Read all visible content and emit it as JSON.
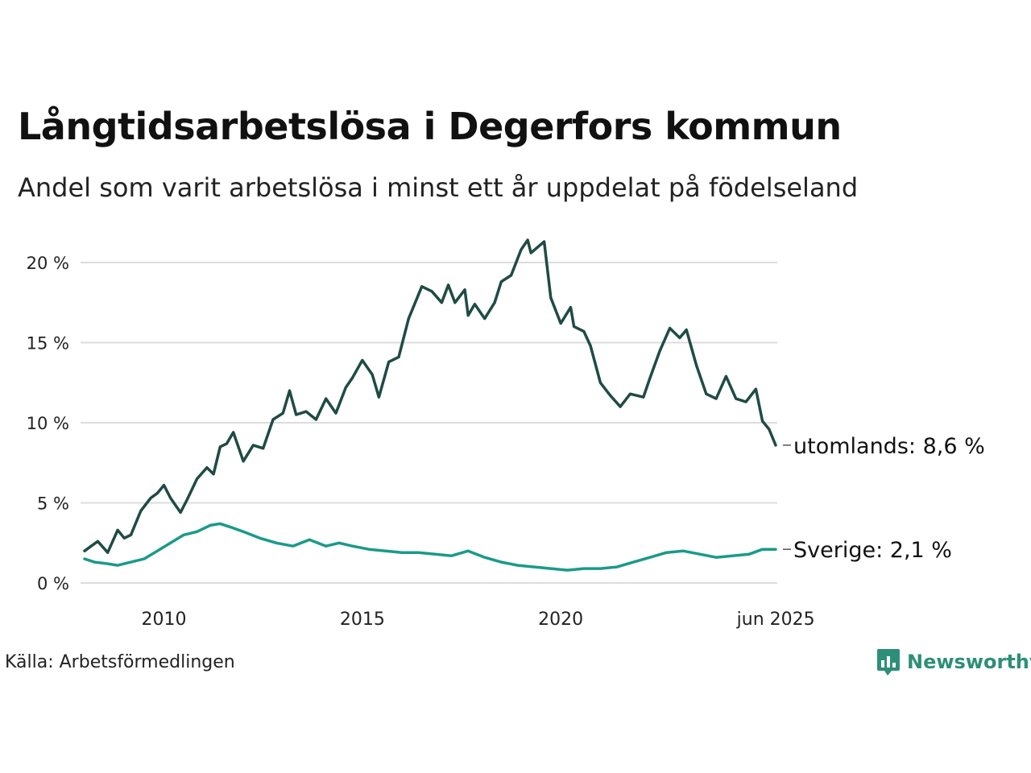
{
  "title": "Långtidsarbetslösa i Degerfors kommun",
  "subtitle": "Andel som varit arbetslösa i minst ett år uppdelat på födelseland",
  "source": "Källa: Arbetsförmedlingen",
  "brand": "Newsworthy",
  "colors": {
    "utomlands": "#1f4b45",
    "sverige": "#1a9a8a",
    "grid": "#dddddd",
    "brand": "#2d8f78"
  },
  "chart_data": {
    "type": "line",
    "x_range": [
      "2008-01",
      "2025-06"
    ],
    "ylim": [
      0,
      21
    ],
    "yticks": [
      0,
      5,
      10,
      15,
      20
    ],
    "ytick_labels": [
      "0 %",
      "5 %",
      "10 %",
      "15 %",
      "20 %"
    ],
    "xticks": [
      2010,
      2015,
      2020,
      2025.42
    ],
    "xtick_labels": [
      "2010",
      "2015",
      "2020",
      "jun 2025"
    ],
    "grid": true,
    "series": [
      {
        "key": "utomlands",
        "end_label": "utomlands: 8,6 %",
        "points": [
          [
            "2008-01",
            2.0
          ],
          [
            "2008-03",
            2.3
          ],
          [
            "2008-05",
            2.6
          ],
          [
            "2008-08",
            1.9
          ],
          [
            "2008-11",
            3.3
          ],
          [
            "2009-01",
            2.8
          ],
          [
            "2009-03",
            3.0
          ],
          [
            "2009-06",
            4.5
          ],
          [
            "2009-09",
            5.3
          ],
          [
            "2009-11",
            5.6
          ],
          [
            "2010-01",
            6.1
          ],
          [
            "2010-03",
            5.3
          ],
          [
            "2010-06",
            4.4
          ],
          [
            "2010-08",
            5.2
          ],
          [
            "2010-11",
            6.5
          ],
          [
            "2011-02",
            7.2
          ],
          [
            "2011-04",
            6.8
          ],
          [
            "2011-06",
            8.5
          ],
          [
            "2011-08",
            8.7
          ],
          [
            "2011-10",
            9.4
          ],
          [
            "2012-01",
            7.6
          ],
          [
            "2012-04",
            8.6
          ],
          [
            "2012-07",
            8.4
          ],
          [
            "2012-10",
            10.2
          ],
          [
            "2013-01",
            10.6
          ],
          [
            "2013-03",
            12.0
          ],
          [
            "2013-05",
            10.5
          ],
          [
            "2013-08",
            10.7
          ],
          [
            "2013-11",
            10.2
          ],
          [
            "2014-02",
            11.5
          ],
          [
            "2014-05",
            10.6
          ],
          [
            "2014-08",
            12.2
          ],
          [
            "2014-10",
            12.8
          ],
          [
            "2015-01",
            13.9
          ],
          [
            "2015-04",
            13.0
          ],
          [
            "2015-06",
            11.6
          ],
          [
            "2015-09",
            13.8
          ],
          [
            "2015-12",
            14.1
          ],
          [
            "2016-03",
            16.5
          ],
          [
            "2016-07",
            18.5
          ],
          [
            "2016-10",
            18.2
          ],
          [
            "2017-01",
            17.5
          ],
          [
            "2017-03",
            18.6
          ],
          [
            "2017-05",
            17.5
          ],
          [
            "2017-08",
            18.3
          ],
          [
            "2017-09",
            16.7
          ],
          [
            "2017-11",
            17.4
          ],
          [
            "2018-02",
            16.5
          ],
          [
            "2018-05",
            17.5
          ],
          [
            "2018-07",
            18.8
          ],
          [
            "2018-10",
            19.2
          ],
          [
            "2019-01",
            20.8
          ],
          [
            "2019-03",
            21.4
          ],
          [
            "2019-04",
            20.6
          ],
          [
            "2019-08",
            21.3
          ],
          [
            "2019-10",
            17.8
          ],
          [
            "2020-01",
            16.2
          ],
          [
            "2020-04",
            17.2
          ],
          [
            "2020-05",
            16.0
          ],
          [
            "2020-08",
            15.7
          ],
          [
            "2020-10",
            14.8
          ],
          [
            "2021-01",
            12.5
          ],
          [
            "2021-04",
            11.7
          ],
          [
            "2021-07",
            11.0
          ],
          [
            "2021-10",
            11.8
          ],
          [
            "2022-02",
            11.6
          ],
          [
            "2022-04",
            12.8
          ],
          [
            "2022-07",
            14.5
          ],
          [
            "2022-10",
            15.9
          ],
          [
            "2023-01",
            15.3
          ],
          [
            "2023-03",
            15.8
          ],
          [
            "2023-06",
            13.6
          ],
          [
            "2023-09",
            11.8
          ],
          [
            "2023-12",
            11.5
          ],
          [
            "2024-03",
            12.9
          ],
          [
            "2024-06",
            11.5
          ],
          [
            "2024-09",
            11.3
          ],
          [
            "2024-12",
            12.1
          ],
          [
            "2025-02",
            10.1
          ],
          [
            "2025-04",
            9.6
          ],
          [
            "2025-06",
            8.6
          ]
        ]
      },
      {
        "key": "sverige",
        "end_label": "Sverige: 2,1 %",
        "points": [
          [
            "2008-01",
            1.5
          ],
          [
            "2008-04",
            1.3
          ],
          [
            "2008-08",
            1.2
          ],
          [
            "2008-11",
            1.1
          ],
          [
            "2009-03",
            1.3
          ],
          [
            "2009-07",
            1.5
          ],
          [
            "2009-11",
            2.0
          ],
          [
            "2010-03",
            2.5
          ],
          [
            "2010-07",
            3.0
          ],
          [
            "2010-11",
            3.2
          ],
          [
            "2011-03",
            3.6
          ],
          [
            "2011-06",
            3.7
          ],
          [
            "2011-09",
            3.5
          ],
          [
            "2012-01",
            3.2
          ],
          [
            "2012-06",
            2.8
          ],
          [
            "2012-11",
            2.5
          ],
          [
            "2013-04",
            2.3
          ],
          [
            "2013-09",
            2.7
          ],
          [
            "2014-02",
            2.3
          ],
          [
            "2014-06",
            2.5
          ],
          [
            "2014-10",
            2.3
          ],
          [
            "2015-03",
            2.1
          ],
          [
            "2015-08",
            2.0
          ],
          [
            "2016-01",
            1.9
          ],
          [
            "2016-06",
            1.9
          ],
          [
            "2016-11",
            1.8
          ],
          [
            "2017-04",
            1.7
          ],
          [
            "2017-09",
            2.0
          ],
          [
            "2018-02",
            1.6
          ],
          [
            "2018-07",
            1.3
          ],
          [
            "2018-12",
            1.1
          ],
          [
            "2019-05",
            1.0
          ],
          [
            "2019-10",
            0.9
          ],
          [
            "2020-03",
            0.8
          ],
          [
            "2020-08",
            0.9
          ],
          [
            "2021-01",
            0.9
          ],
          [
            "2021-06",
            1.0
          ],
          [
            "2021-11",
            1.3
          ],
          [
            "2022-04",
            1.6
          ],
          [
            "2022-09",
            1.9
          ],
          [
            "2023-02",
            2.0
          ],
          [
            "2023-07",
            1.8
          ],
          [
            "2023-12",
            1.6
          ],
          [
            "2024-05",
            1.7
          ],
          [
            "2024-10",
            1.8
          ],
          [
            "2025-02",
            2.1
          ],
          [
            "2025-06",
            2.1
          ]
        ]
      }
    ]
  }
}
